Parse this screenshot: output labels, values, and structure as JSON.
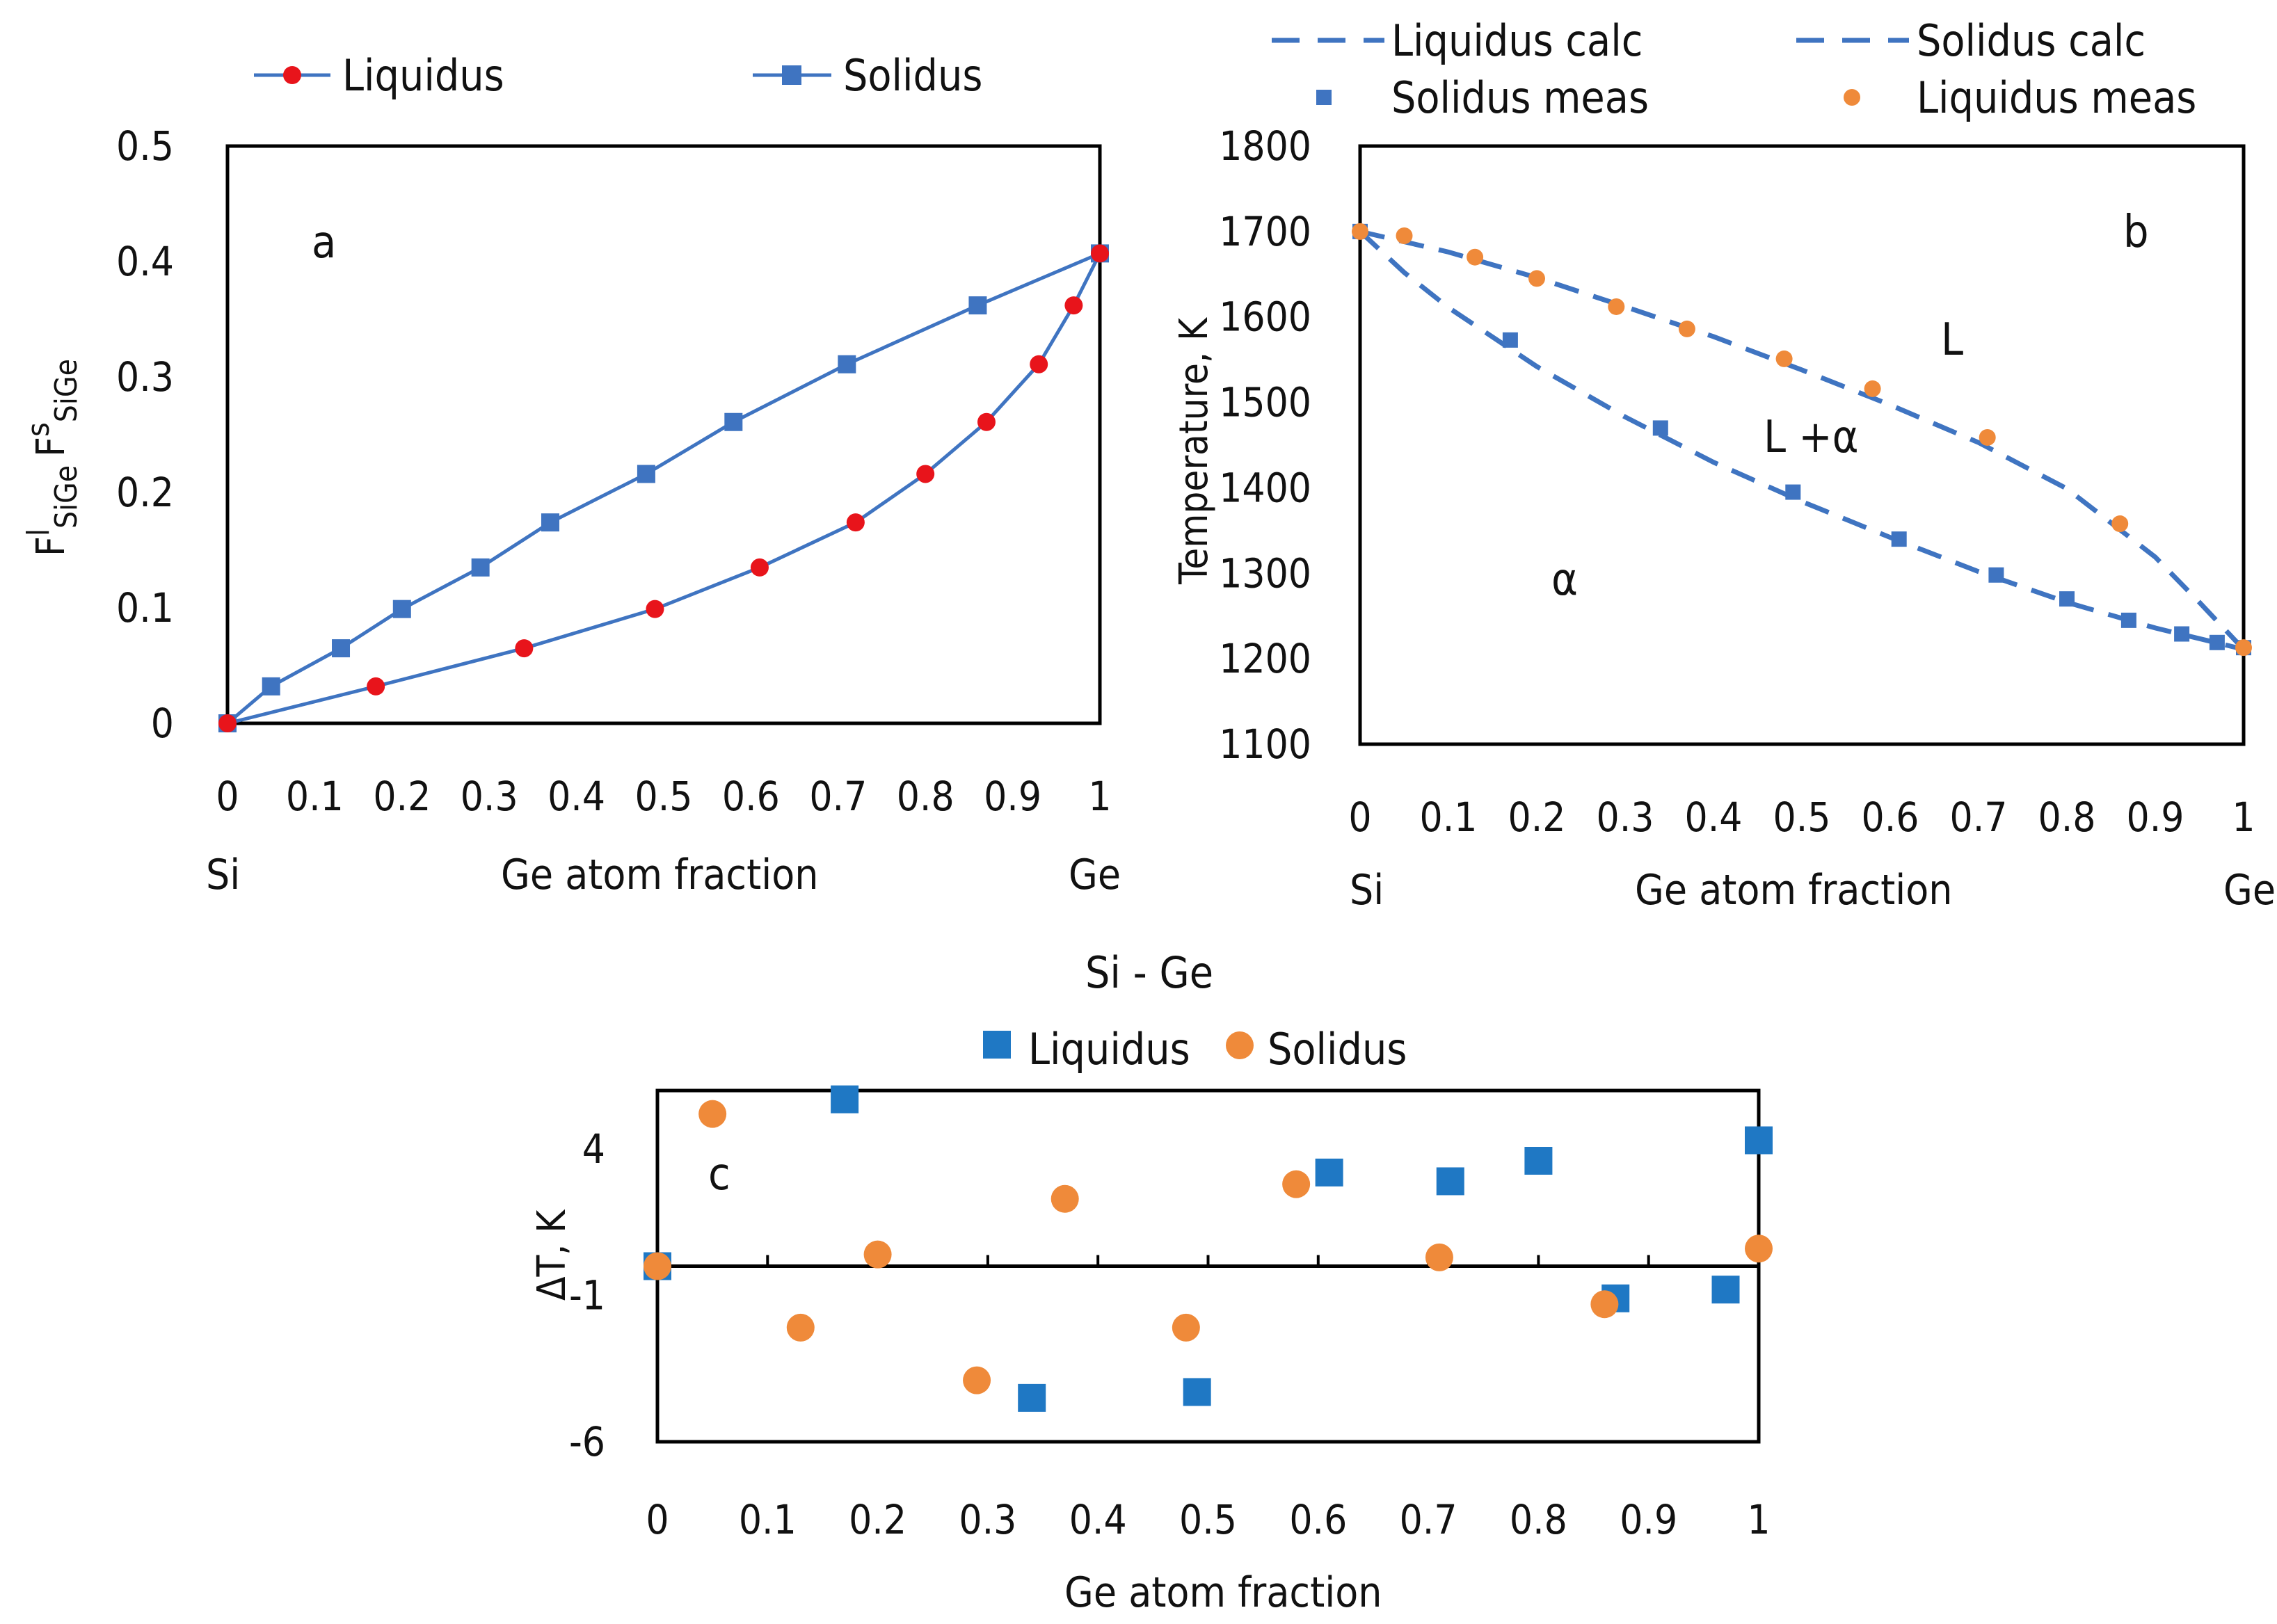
{
  "colors": {
    "blue": "#3f74c1",
    "red": "#e8141b",
    "orange": "#ef8a3a",
    "blue_c": "#1f78c4",
    "axis": "#000000"
  },
  "chart_data": [
    {
      "id": "a",
      "type": "line",
      "annotation": "a",
      "xlabel": "Ge atom fraction",
      "x_left_label": "Si",
      "x_right_label": "Ge",
      "ylabel": {
        "F1": "F",
        "sup1": "l",
        "sub1": "SiGe",
        "F2": "F",
        "sup2": "s",
        "sub2": "SiGe"
      },
      "xlim": [
        0,
        1
      ],
      "ylim": [
        0,
        0.5
      ],
      "x_ticks": [
        "0",
        "0.1",
        "0.2",
        "0.3",
        "0.4",
        "0.5",
        "0.6",
        "0.7",
        "0.8",
        "0.9",
        "1"
      ],
      "y_ticks": [
        "0",
        "0.1",
        "0.2",
        "0.3",
        "0.4",
        "0.5"
      ],
      "series": [
        {
          "name": "Liquidus",
          "marker": "circle",
          "x": [
            0,
            0.17,
            0.34,
            0.49,
            0.61,
            0.72,
            0.8,
            0.87,
            0.93,
            0.97,
            1.0
          ],
          "y": [
            0,
            0.032,
            0.065,
            0.099,
            0.135,
            0.174,
            0.216,
            0.261,
            0.311,
            0.362,
            0.407
          ]
        },
        {
          "name": "Solidus",
          "marker": "square",
          "x": [
            0,
            0.05,
            0.13,
            0.2,
            0.29,
            0.37,
            0.48,
            0.58,
            0.71,
            0.86,
            1.0
          ],
          "y": [
            0,
            0.032,
            0.065,
            0.099,
            0.135,
            0.174,
            0.216,
            0.261,
            0.311,
            0.362,
            0.407
          ]
        }
      ]
    },
    {
      "id": "b",
      "type": "line",
      "annotation": "b",
      "xlabel": "Ge atom fraction",
      "x_left_label": "Si",
      "x_right_label": "Ge",
      "ylabel": "Temperature, K",
      "xlim": [
        0,
        1
      ],
      "ylim": [
        1100,
        1800
      ],
      "x_ticks": [
        "0",
        "0.1",
        "0.2",
        "0.3",
        "0.4",
        "0.5",
        "0.6",
        "0.7",
        "0.8",
        "0.9",
        "1"
      ],
      "y_ticks": [
        "1100",
        "1200",
        "1300",
        "1400",
        "1500",
        "1600",
        "1700",
        "1800"
      ],
      "regions": [
        "L",
        "L +α",
        "α"
      ],
      "series": [
        {
          "name": "Liquidus calc",
          "style": "dashed",
          "x": [
            0,
            0.1,
            0.2,
            0.3,
            0.4,
            0.5,
            0.6,
            0.7,
            0.8,
            0.9,
            0.95,
            1.0
          ],
          "y": [
            1700,
            1676,
            1646,
            1612,
            1577,
            1538,
            1497,
            1453,
            1399,
            1319,
            1266,
            1211
          ]
        },
        {
          "name": "Solidus calc",
          "style": "dashed",
          "x": [
            0,
            0.05,
            0.1,
            0.2,
            0.3,
            0.4,
            0.5,
            0.6,
            0.7,
            0.8,
            0.9,
            1.0
          ],
          "y": [
            1700,
            1652,
            1611,
            1542,
            1483,
            1430,
            1384,
            1342,
            1302,
            1266,
            1236,
            1211
          ]
        },
        {
          "name": "Solidus meas",
          "marker": "square",
          "x": [
            0,
            0.17,
            0.34,
            0.49,
            0.61,
            0.72,
            0.8,
            0.87,
            0.93,
            0.97,
            1.0
          ],
          "y": [
            1700,
            1573,
            1470,
            1395,
            1340,
            1298,
            1270,
            1245,
            1229,
            1219,
            1213
          ]
        },
        {
          "name": "Liquidus meas",
          "marker": "circle",
          "x": [
            0,
            0.05,
            0.13,
            0.2,
            0.29,
            0.37,
            0.48,
            0.58,
            0.71,
            0.86,
            1.0
          ],
          "y": [
            1700,
            1695,
            1670,
            1645,
            1612,
            1586,
            1551,
            1516,
            1459,
            1358,
            1213
          ]
        }
      ]
    },
    {
      "id": "c",
      "type": "scatter",
      "title": "Si - Ge",
      "annotation": "c",
      "xlabel": "Ge atom fraction",
      "ylabel": "ΔT, K",
      "xlim": [
        0,
        1
      ],
      "ylim": [
        -6,
        6
      ],
      "x_ticks": [
        "0",
        "0.1",
        "0.2",
        "0.3",
        "0.4",
        "0.5",
        "0.6",
        "0.7",
        "0.8",
        "0.9",
        "1"
      ],
      "y_ticks": [
        {
          "label": "4",
          "value": 4
        },
        {
          "label": "-1",
          "value": -1
        },
        {
          "label": "-6",
          "value": -6
        }
      ],
      "series": [
        {
          "name": "Liquidus",
          "marker": "square",
          "x": [
            0,
            0.17,
            0.34,
            0.49,
            0.61,
            0.72,
            0.8,
            0.87,
            0.97,
            1.0
          ],
          "y": [
            0,
            5.7,
            -4.5,
            -4.3,
            3.2,
            2.9,
            3.6,
            -1.1,
            -0.8,
            4.3
          ]
        },
        {
          "name": "Solidus",
          "marker": "circle",
          "x": [
            0,
            0.05,
            0.13,
            0.2,
            0.29,
            0.37,
            0.48,
            0.58,
            0.71,
            0.86,
            1.0
          ],
          "y": [
            0,
            5.2,
            -2.1,
            0.4,
            -3.9,
            2.3,
            -2.1,
            2.8,
            0.3,
            -1.3,
            0.6
          ]
        }
      ]
    }
  ]
}
